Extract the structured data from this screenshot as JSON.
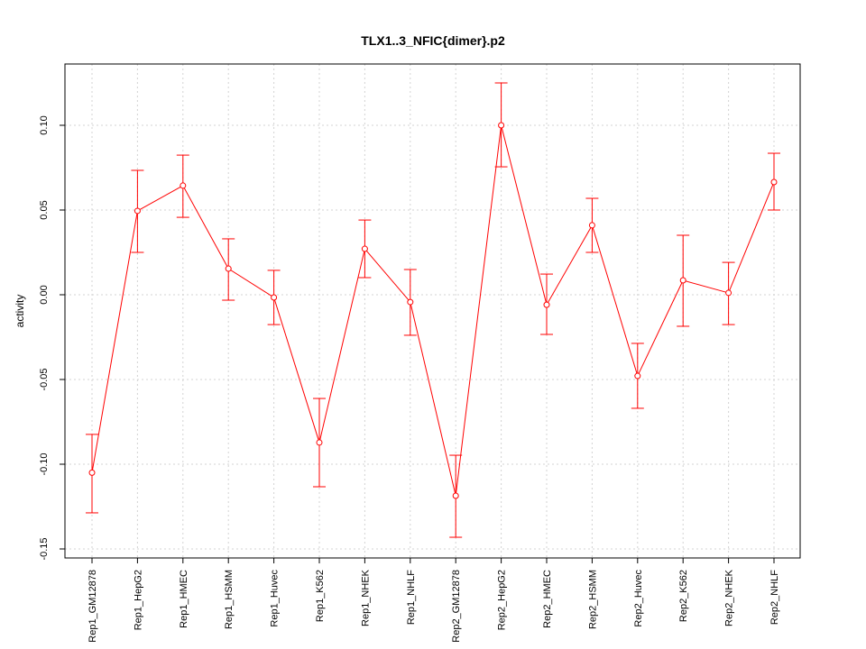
{
  "chart_data": {
    "type": "line",
    "title": "TLX1..3_NFIC{dimer}.p2",
    "xlabel": "",
    "ylabel": "activity",
    "ylim": [
      -0.155,
      0.135
    ],
    "yticks": [
      -0.15,
      -0.1,
      -0.05,
      0.0,
      0.05,
      0.1
    ],
    "ytick_labels": [
      "-0.15",
      "-0.10",
      "-0.05",
      "0.00",
      "0.05",
      "0.10"
    ],
    "grid": true,
    "color": "#ff0000",
    "categories": [
      "Rep1_GM12878",
      "Rep1_HepG2",
      "Rep1_HMEC",
      "Rep1_HSMM",
      "Rep1_Huvec",
      "Rep1_K562",
      "Rep1_NHEK",
      "Rep1_NHLF",
      "Rep2_GM12878",
      "Rep2_HepG2",
      "Rep2_HMEC",
      "Rep2_HSMM",
      "Rep2_Huvec",
      "Rep2_K562",
      "Rep2_NHEK",
      "Rep2_NHLF"
    ],
    "values": [
      -0.105,
      0.0495,
      0.0644,
      0.0154,
      -0.0016,
      -0.0872,
      0.0271,
      -0.0043,
      -0.1186,
      0.1,
      -0.0059,
      0.041,
      -0.0479,
      0.0085,
      0.0011,
      0.0665
    ],
    "upper": [
      -0.0824,
      0.0734,
      0.0824,
      0.033,
      0.0144,
      -0.0612,
      0.0441,
      0.0149,
      -0.0947,
      0.125,
      0.0122,
      0.0569,
      -0.0287,
      0.0351,
      0.0191,
      0.0835
    ],
    "lower": [
      -0.1287,
      0.025,
      0.0457,
      -0.0032,
      -0.0176,
      -0.1133,
      0.0101,
      -0.0239,
      -0.1431,
      0.0755,
      -0.0234,
      0.025,
      -0.067,
      -0.0186,
      -0.0176,
      0.05
    ]
  }
}
